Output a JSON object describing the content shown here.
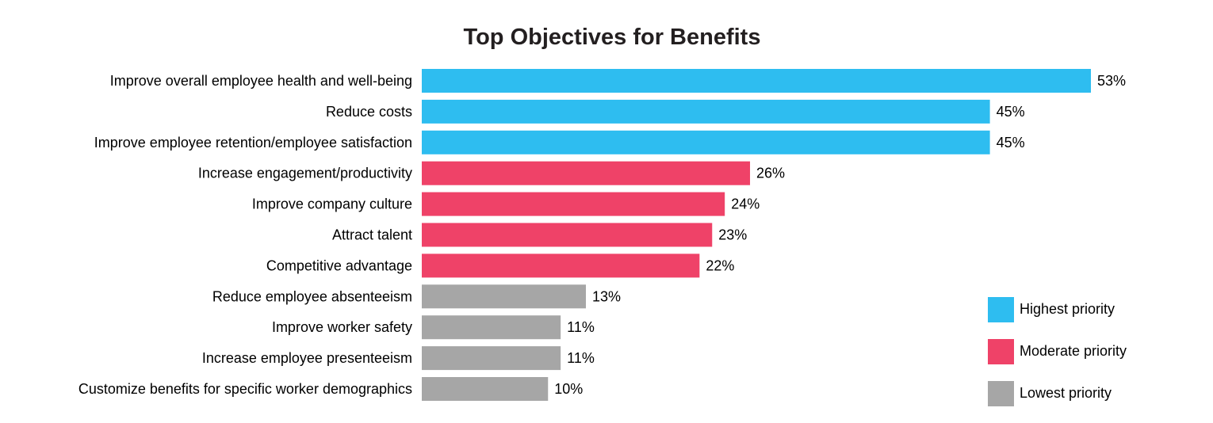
{
  "chart_data": {
    "type": "bar",
    "orientation": "horizontal",
    "title": "Top Objectives for Benefits",
    "xlabel": "",
    "ylabel": "",
    "xlim": [
      0,
      53
    ],
    "grid": false,
    "legend_position": "bottom-right",
    "categories": [
      "Improve overall employee health and well-being",
      "Reduce costs",
      "Improve employee retention/employee satisfaction",
      "Increase engagement/productivity",
      "Improve company culture",
      "Attract talent",
      "Competitive advantage",
      "Reduce employee absenteeism",
      "Improve worker safety",
      "Increase employee presenteeism",
      "Customize benefits for specific worker demographics"
    ],
    "values": [
      53,
      45,
      45,
      26,
      24,
      23,
      22,
      13,
      11,
      11,
      10
    ],
    "value_labels": [
      "53%",
      "45%",
      "45%",
      "26%",
      "24%",
      "23%",
      "22%",
      "13%",
      "11%",
      "11%",
      "10%"
    ],
    "bar_groups": [
      "highest",
      "highest",
      "highest",
      "moderate",
      "moderate",
      "moderate",
      "moderate",
      "lowest",
      "lowest",
      "lowest",
      "lowest"
    ],
    "legend": [
      {
        "key": "highest",
        "label": "Highest priority",
        "color": "#2ebdf0"
      },
      {
        "key": "moderate",
        "label": "Moderate priority",
        "color": "#ef4268"
      },
      {
        "key": "lowest",
        "label": "Lowest priority",
        "color": "#a6a6a6"
      }
    ]
  }
}
